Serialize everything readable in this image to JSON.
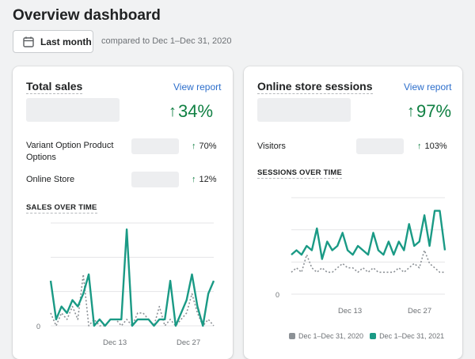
{
  "page": {
    "title": "Overview dashboard"
  },
  "toolbar": {
    "date_label": "Last month",
    "compare_text": "compared to Dec 1–Dec 31, 2020"
  },
  "total_sales": {
    "title": "Total sales",
    "view_report": "View report",
    "percent": "34%",
    "rows": [
      {
        "label": "Variant Option Product Options",
        "percent": "70%"
      },
      {
        "label": "Online Store",
        "percent": "12%"
      }
    ],
    "section_title": "SALES OVER TIME",
    "y_label": "0",
    "x_labels": [
      "Dec 13",
      "Dec 27"
    ]
  },
  "online_sessions": {
    "title": "Online store sessions",
    "view_report": "View report",
    "percent": "97%",
    "rows": [
      {
        "label": "Visitors",
        "percent": "103%"
      }
    ],
    "section_title": "SESSIONS OVER TIME",
    "y_label": "0",
    "x_labels": [
      "Dec 13",
      "Dec 27"
    ],
    "legend": [
      {
        "label": "Dec 1–Dec 31, 2020",
        "color": "#8c9196"
      },
      {
        "label": "Dec 1–Dec 31, 2021",
        "color": "#1a9a85"
      }
    ]
  },
  "colors": {
    "accent_green": "#108043",
    "teal_series": "#1a9a85",
    "gray_series": "#8c9196",
    "link": "#2c6ecb"
  },
  "icons": {
    "date_button": "calendar-icon",
    "trend": "arrow-up-icon"
  },
  "chart_data": [
    {
      "type": "line",
      "x": [
        1,
        2,
        3,
        4,
        5,
        6,
        7,
        8,
        9,
        10,
        11,
        12,
        13,
        14,
        15,
        16,
        17,
        18,
        19,
        20,
        21,
        22,
        23,
        24,
        25,
        26,
        27,
        28,
        29,
        30,
        31
      ],
      "series": [
        {
          "values": [
            2,
            0,
            2,
            1,
            3,
            1,
            8,
            0,
            1,
            0,
            0,
            1,
            1,
            0,
            1,
            0,
            2,
            2,
            1,
            0,
            3,
            0,
            1,
            0,
            1,
            2,
            5,
            2,
            0,
            1,
            0
          ]
        },
        {
          "values": [
            7,
            1,
            3,
            2,
            4,
            3,
            5,
            8,
            0,
            1,
            0,
            1,
            1,
            1,
            15,
            0,
            1,
            1,
            1,
            0,
            1,
            1,
            7,
            0,
            2,
            4,
            8,
            3,
            0,
            5,
            7
          ]
        }
      ],
      "ylim": [
        0,
        16
      ]
    },
    {
      "type": "line",
      "x": [
        1,
        2,
        3,
        4,
        5,
        6,
        7,
        8,
        9,
        10,
        11,
        12,
        13,
        14,
        15,
        16,
        17,
        18,
        19,
        20,
        21,
        22,
        23,
        24,
        25,
        26,
        27,
        28,
        29,
        30,
        31
      ],
      "series": [
        {
          "values": [
            5,
            6,
            5,
            9,
            6,
            5,
            6,
            5,
            5,
            6,
            7,
            6,
            6,
            5,
            6,
            5,
            6,
            5,
            5,
            5,
            5,
            6,
            5,
            6,
            7,
            6,
            10,
            7,
            6,
            5,
            5
          ]
        },
        {
          "values": [
            9,
            10,
            9,
            11,
            10,
            15,
            8,
            12,
            10,
            11,
            14,
            10,
            9,
            11,
            10,
            9,
            14,
            10,
            9,
            12,
            9,
            12,
            10,
            16,
            11,
            12,
            18,
            11,
            19,
            19,
            10
          ]
        }
      ],
      "ylim": [
        0,
        22
      ]
    }
  ]
}
